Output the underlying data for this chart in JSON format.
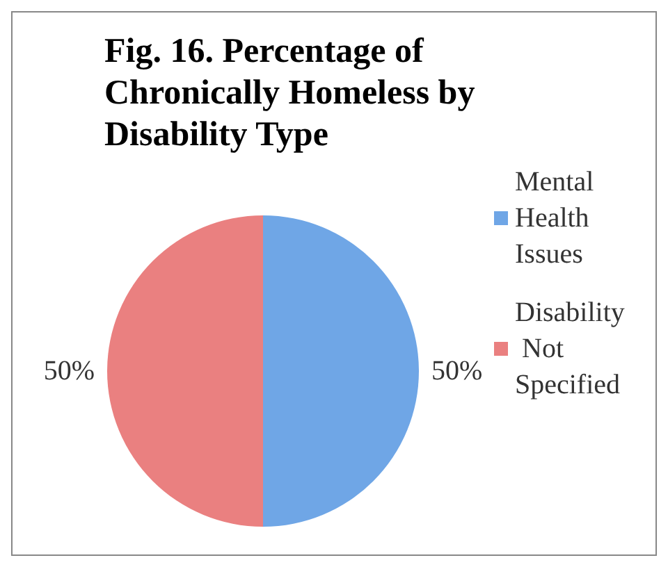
{
  "chart_data": {
    "type": "pie",
    "title": "Fig. 16. Percentage of Chronically Homeless by Disability Type",
    "categories": [
      "Mental Health Issues",
      "Disability Not Specified"
    ],
    "values": [
      50,
      50
    ],
    "colors": [
      "#6fa6e6",
      "#ea8080"
    ],
    "value_labels": [
      "50%",
      "50%"
    ],
    "legend": "right"
  }
}
